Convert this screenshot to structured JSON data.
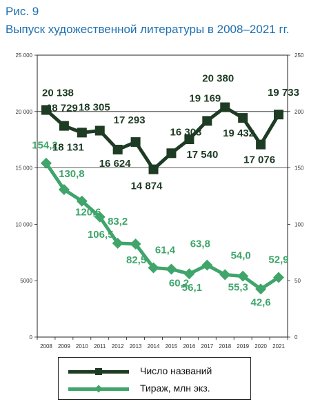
{
  "figure": {
    "label": "Рис. 9",
    "title": "Выпуск художественной литературы в 2008–2021 гг."
  },
  "colors": {
    "titles_series": "#1e3b24",
    "copies_series": "#3fa56b",
    "title_text": "#1e6fb0"
  },
  "legend": {
    "items": [
      {
        "label": "Число названий",
        "marker": "square",
        "color": "#1e3b24"
      },
      {
        "label": "Тираж, млн экз.",
        "marker": "diamond",
        "color": "#3fa56b"
      }
    ]
  },
  "chart_data": {
    "type": "line",
    "x": [
      "2008",
      "2009",
      "2010",
      "2011",
      "2012",
      "2013",
      "2014",
      "2015",
      "2016",
      "2017",
      "2018",
      "2019",
      "2020",
      "2021"
    ],
    "left_axis": {
      "ylim": [
        0,
        25000
      ],
      "ticks": [
        "0",
        "5000",
        "10 000",
        "15 000",
        "20 000",
        "25 000"
      ]
    },
    "right_axis": {
      "ylim": [
        0,
        250
      ],
      "ticks": [
        "0",
        "50",
        "100",
        "150",
        "200",
        "250"
      ]
    },
    "grid": {
      "horizontal_at": [
        15000,
        20000
      ]
    },
    "legend_position": "bottom",
    "series": [
      {
        "name": "Число названий",
        "axis": "left",
        "marker": "square",
        "values": [
          20138,
          18729,
          18131,
          18305,
          16624,
          17293,
          14874,
          16303,
          17540,
          19169,
          20380,
          19432,
          17076,
          19733
        ],
        "labels": [
          "20 138",
          "18 729",
          "18 131",
          "18 305",
          "16 624",
          "17 293",
          "14 874",
          "16 303",
          "17 540",
          "19 169",
          "20 380",
          "19 432",
          "17 076",
          "19 733"
        ]
      },
      {
        "name": "Тираж, млн экз.",
        "axis": "right",
        "marker": "diamond",
        "values": [
          154.2,
          130.8,
          120.6,
          106.5,
          83.2,
          82.5,
          61.4,
          60.2,
          56.1,
          63.8,
          55.3,
          54.0,
          42.6,
          52.9
        ],
        "labels": [
          "154,2",
          "130,8",
          "120,6",
          "106,5",
          "83,2",
          "82,5",
          "61,4",
          "60,2",
          "56,1",
          "63,8",
          "55,3",
          "54,0",
          "42,6",
          "52,9"
        ]
      }
    ]
  }
}
